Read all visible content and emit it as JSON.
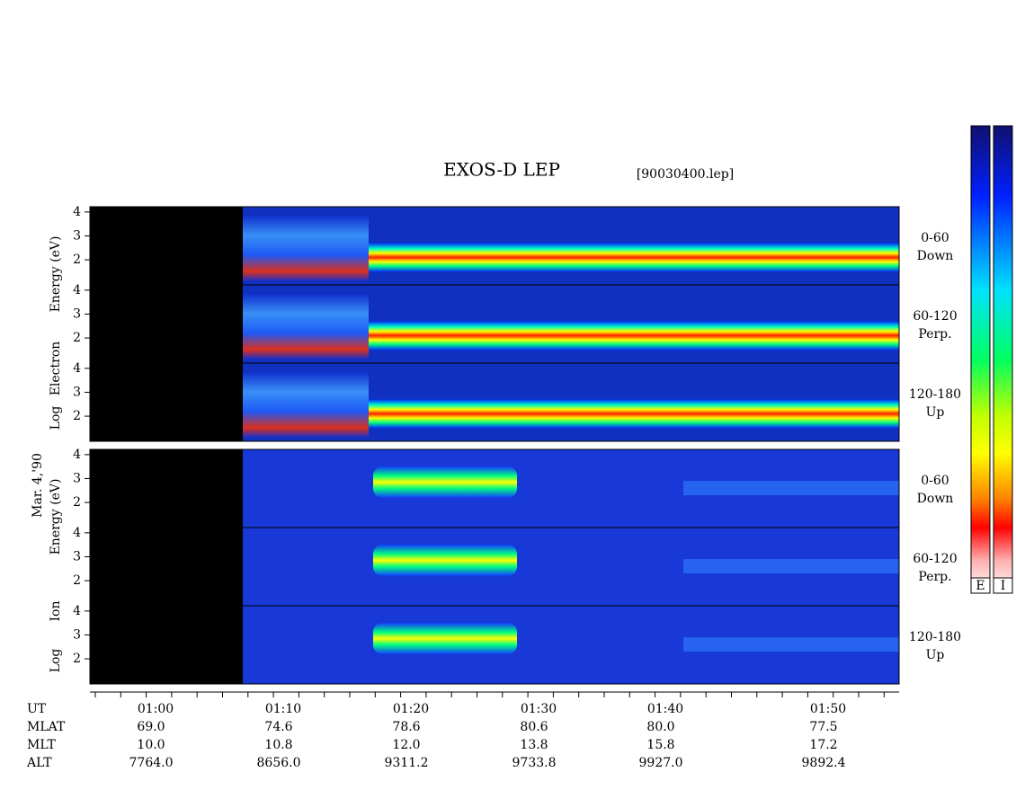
{
  "chart_data": {
    "type": "spectrogram",
    "title": "EXOS-D LEP",
    "subtitle": "[90030400.lep]",
    "date_label": "Mar. 4,'90",
    "ylim": [
      0.95,
      4.22
    ],
    "yticks": [
      2,
      3,
      4
    ],
    "groups": [
      {
        "axis_label": [
          "Log",
          "Electron",
          "Energy (eV)"
        ],
        "panels": [
          {
            "label": [
              "0-60",
              "Down"
            ]
          },
          {
            "label": [
              "60-120",
              "Perp."
            ]
          },
          {
            "label": [
              "120-180",
              "Up"
            ]
          }
        ]
      },
      {
        "axis_label": [
          "Log",
          "Ion",
          "Energy (eV)"
        ],
        "panels": [
          {
            "label": [
              "0-60",
              "Down"
            ]
          },
          {
            "label": [
              "60-120",
              "Perp."
            ]
          },
          {
            "label": [
              "120-180",
              "Up"
            ]
          }
        ]
      }
    ],
    "orbit": {
      "rows": [
        [
          "UT",
          "01:00",
          "01:10",
          "01:20",
          "01:30",
          "01:40",
          "01:50"
        ],
        [
          "MLAT",
          "69.0",
          "74.6",
          "78.6",
          "80.6",
          "80.0",
          "77.5"
        ],
        [
          "MLT",
          "10.0",
          "10.8",
          "12.0",
          "13.8",
          "15.8",
          "17.2"
        ],
        [
          "ALT",
          "7764.0",
          "8656.0",
          "9311.2",
          "9733.8",
          "9927.0",
          "9892.4"
        ]
      ]
    },
    "colorbar_labels": [
      "E",
      "I"
    ]
  }
}
